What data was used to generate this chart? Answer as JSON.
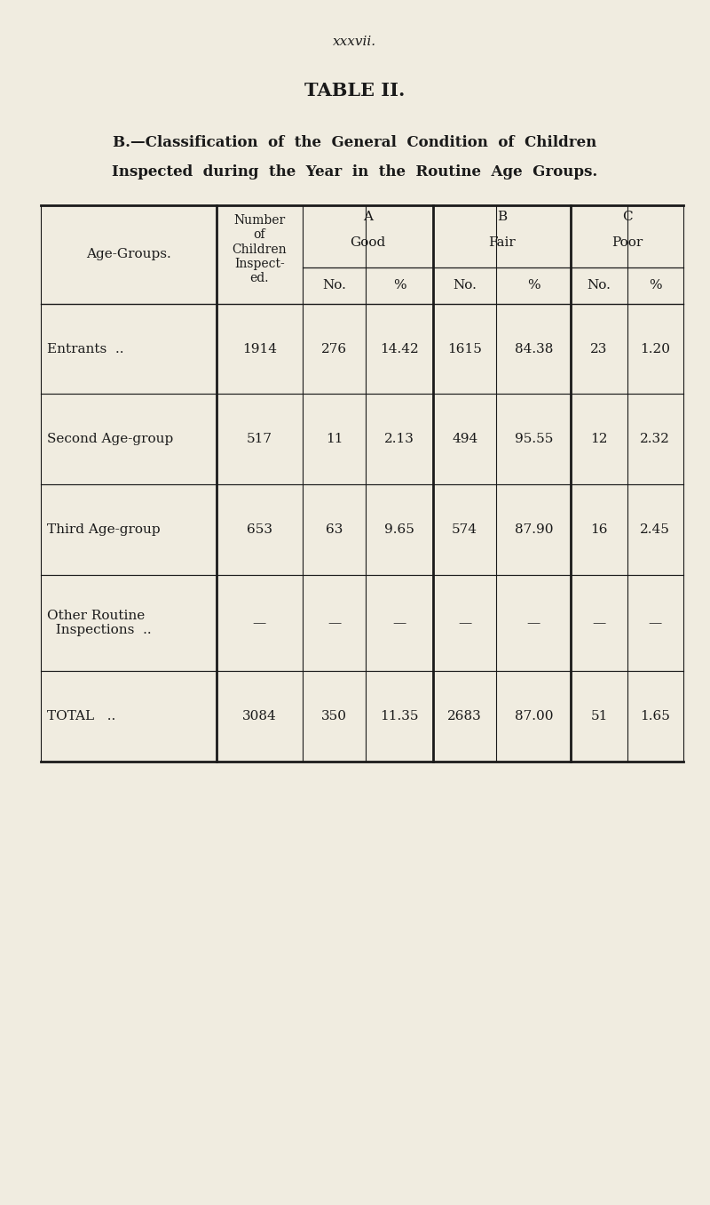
{
  "page_number": "xxxvii.",
  "table_title": "TABLE II.",
  "subtitle_line1": "B.—Classification  of  the  General  Condition  of  Children",
  "subtitle_line2": "Inspected  during  the  Year  in  the  Routine  Age  Groups.",
  "background_color": "#f0ece0",
  "text_color": "#1a1a1a",
  "rows": [
    [
      "Entrants  ..",
      "1914",
      "276",
      "14.42",
      "1615",
      "84.38",
      "23",
      "1.20"
    ],
    [
      "Second Age-group",
      "517",
      "11",
      "2.13",
      "494",
      "95.55",
      "12",
      "2.32"
    ],
    [
      "Third Age-group",
      "653",
      "63",
      "9.65",
      "574",
      "87.90",
      "16",
      "2.45"
    ],
    [
      "Other Routine\n  Inspections  ..",
      "—",
      "—",
      "—",
      "—",
      "—",
      "—",
      "—"
    ],
    [
      "TOTAL   ..",
      "3084",
      "350",
      "11.35",
      "2683",
      "87.00",
      "51",
      "1.65"
    ]
  ],
  "font_size_page": 11,
  "font_size_title": 15,
  "font_size_subtitle": 12,
  "font_size_header": 11,
  "font_size_data": 11
}
